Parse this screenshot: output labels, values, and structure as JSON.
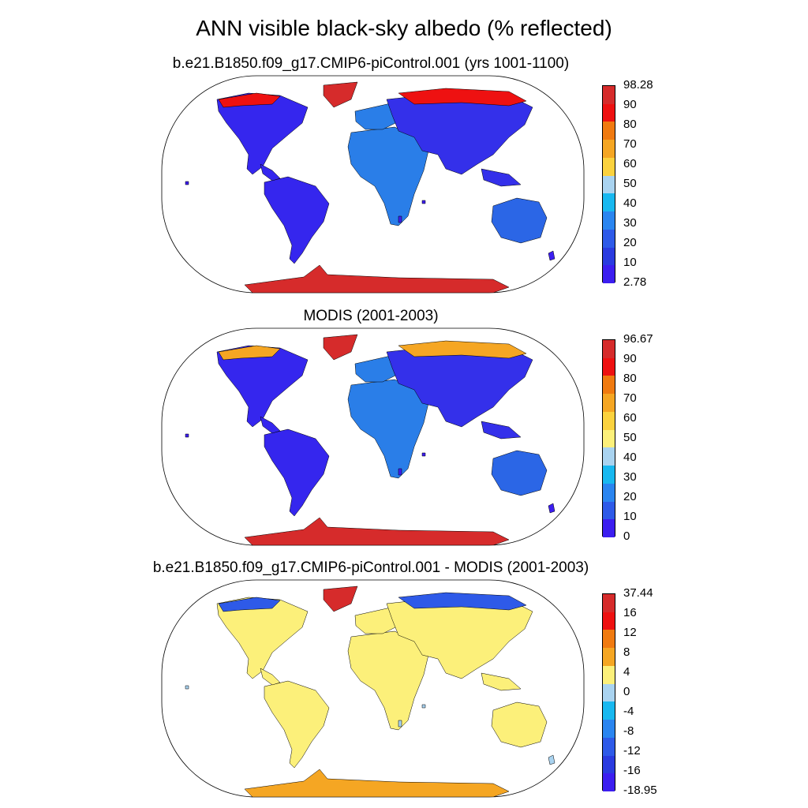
{
  "title": "ANN visible black-sky albedo (% reflected)",
  "panels": [
    {
      "id": "model",
      "title": "b.e21.B1850.f09_g17.CMIP6-piControl.001 (yrs 1001-1100)",
      "colorbar": {
        "labels": [
          "98.28",
          "90",
          "80",
          "70",
          "60",
          "50",
          "40",
          "30",
          "20",
          "10",
          "2.78"
        ],
        "colors": [
          "#d62b2b",
          "#ee1111",
          "#f07a10",
          "#f5a623",
          "#fbd23e",
          "#a9d3f0",
          "#18b8f0",
          "#2a85f0",
          "#2e5ae8",
          "#2a3be0",
          "#3c1ef0"
        ]
      },
      "fills": {
        "north_americas": "#3526ee",
        "africa_europe": "#2a7ee8",
        "asia": "#3430ea",
        "australia": "#2b66e6",
        "greenland": "#d62b2b",
        "antarctica": "#d62b2b",
        "arctic": "#ee1111",
        "islands": "#3c1ef0"
      }
    },
    {
      "id": "obs",
      "title": "MODIS (2001-2003)",
      "colorbar": {
        "labels": [
          "96.67",
          "90",
          "80",
          "70",
          "60",
          "50",
          "40",
          "30",
          "20",
          "10",
          "0"
        ],
        "colors": [
          "#d62b2b",
          "#ee1111",
          "#f07a10",
          "#f5a623",
          "#fbd23e",
          "#fcf07a",
          "#a9d3f0",
          "#18b8f0",
          "#2a85f0",
          "#2e5ae8",
          "#3c1ef0"
        ]
      },
      "fills": {
        "north_americas": "#3526ee",
        "africa_europe": "#2a7ee8",
        "asia": "#3430ea",
        "australia": "#2b66e6",
        "greenland": "#d62b2b",
        "antarctica": "#d62b2b",
        "arctic": "#f5a623",
        "islands": "#3c1ef0"
      }
    },
    {
      "id": "diff",
      "title": "b.e21.B1850.f09_g17.CMIP6-piControl.001 - MODIS (2001-2003)",
      "colorbar": {
        "labels": [
          "37.44",
          "16",
          "12",
          "8",
          "4",
          "0",
          "-4",
          "-8",
          "-12",
          "-16",
          "-18.95"
        ],
        "colors": [
          "#d62b2b",
          "#ee1111",
          "#f07a10",
          "#f5a623",
          "#fcf07a",
          "#a9d3f0",
          "#18b8f0",
          "#2a85f0",
          "#2e5ae8",
          "#2a3be0",
          "#3c1ef0"
        ]
      },
      "fills": {
        "north_americas": "#fcf07a",
        "africa_europe": "#fcf07a",
        "asia": "#fcf07a",
        "australia": "#fcf07a",
        "greenland": "#d62b2b",
        "antarctica": "#f5a623",
        "arctic": "#2e5ae8",
        "islands": "#a9d3f0"
      }
    }
  ]
}
